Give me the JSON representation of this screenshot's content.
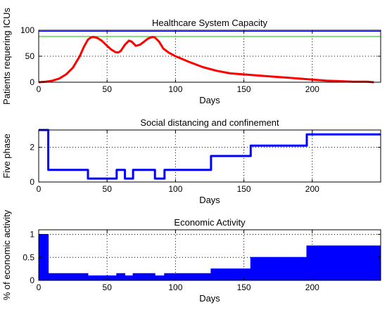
{
  "chart_data": [
    {
      "type": "line",
      "title": "Healthcare System Capacity",
      "xlabel": "Days",
      "ylabel": "Patients requering ICUs",
      "xlim": [
        0,
        250
      ],
      "ylim": [
        0,
        100
      ],
      "xticks": [
        0,
        50,
        100,
        150,
        200
      ],
      "yticks": [
        0,
        50,
        100
      ],
      "grid": true,
      "reference_lines": [
        {
          "y": 98,
          "color": "#0000ff"
        },
        {
          "y": 88,
          "color": "#22dd22"
        }
      ],
      "series": [
        {
          "color": "#ff0000",
          "x": [
            0,
            5,
            10,
            15,
            20,
            25,
            30,
            33,
            36,
            38,
            40,
            43,
            46,
            50,
            53,
            56,
            58,
            60,
            63,
            66,
            68,
            71,
            74,
            77,
            80,
            83,
            85,
            88,
            91,
            95,
            100,
            110,
            120,
            130,
            140,
            150,
            160,
            170,
            180,
            190,
            200,
            210,
            220,
            230,
            240,
            245
          ],
          "y": [
            0,
            1,
            3,
            7,
            15,
            28,
            50,
            68,
            82,
            86,
            87,
            85,
            80,
            70,
            63,
            58,
            57,
            60,
            72,
            80,
            78,
            70,
            72,
            78,
            84,
            87,
            86,
            78,
            65,
            57,
            50,
            39,
            29,
            22,
            17,
            15,
            13,
            11,
            9,
            7,
            5,
            3,
            2,
            1,
            1,
            0
          ]
        }
      ]
    },
    {
      "type": "line",
      "title": "Social distancing and confinement",
      "xlabel": "Days",
      "ylabel": "Five phase",
      "xlim": [
        0,
        250
      ],
      "ylim": [
        0,
        3
      ],
      "xticks": [
        0,
        50,
        100,
        150,
        200
      ],
      "yticks": [
        0,
        2
      ],
      "grid": true,
      "series": [
        {
          "color": "#0000ff",
          "step": true,
          "x": [
            0,
            7,
            36,
            57,
            63,
            69,
            85,
            92,
            126,
            155,
            196,
            250
          ],
          "y": [
            3,
            0.7,
            0.2,
            0.7,
            0.2,
            0.7,
            0.2,
            0.7,
            1.5,
            2.1,
            2.75,
            2.75
          ]
        }
      ]
    },
    {
      "type": "area",
      "title": "Economic Activity",
      "xlabel": "Days",
      "ylabel": "% of economic activity",
      "xlim": [
        0,
        250
      ],
      "ylim": [
        0,
        1.1
      ],
      "xticks": [
        0,
        50,
        100,
        150,
        200
      ],
      "yticks": [
        0,
        0.5,
        1
      ],
      "grid": true,
      "series": [
        {
          "color": "#0000ff",
          "step": true,
          "x": [
            0,
            7,
            36,
            57,
            63,
            69,
            85,
            92,
            126,
            155,
            196,
            250
          ],
          "y": [
            1.0,
            0.15,
            0.1,
            0.15,
            0.1,
            0.15,
            0.1,
            0.15,
            0.25,
            0.5,
            0.75,
            0.75
          ]
        }
      ]
    }
  ]
}
